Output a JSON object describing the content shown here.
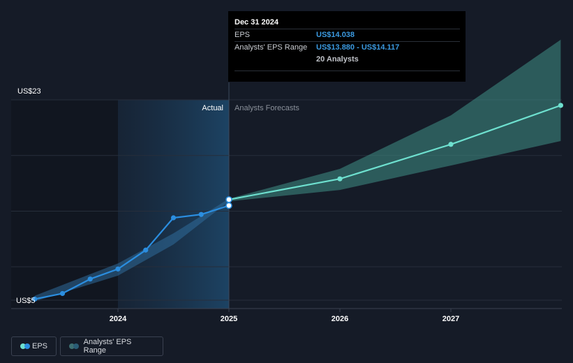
{
  "chart_data": {
    "type": "line",
    "y_axis": {
      "max_label": "US$23",
      "min_label": "US$5",
      "ylim": [
        5,
        23
      ]
    },
    "x_ticks": [
      "2024",
      "2025",
      "2026",
      "2027"
    ],
    "region_labels": {
      "actual": "Actual",
      "forecast": "Analysts Forecasts"
    },
    "series": [
      {
        "name": "EPS",
        "kind": "actual",
        "color": "#2b8ee0",
        "points": [
          {
            "x": 2023.25,
            "y": 5.1
          },
          {
            "x": 2023.5,
            "y": 5.6
          },
          {
            "x": 2023.75,
            "y": 6.9
          },
          {
            "x": 2024.0,
            "y": 7.8
          },
          {
            "x": 2024.25,
            "y": 9.5
          },
          {
            "x": 2024.5,
            "y": 12.4
          },
          {
            "x": 2024.75,
            "y": 12.7
          },
          {
            "x": 2025.0,
            "y": 13.5
          }
        ]
      },
      {
        "name": "EPS",
        "kind": "forecast",
        "color": "#6ee0cf",
        "points": [
          {
            "x": 2025.0,
            "y": 14.04
          },
          {
            "x": 2026.0,
            "y": 15.9
          },
          {
            "x": 2027.0,
            "y": 19.0
          },
          {
            "x": 2027.99,
            "y": 22.5
          }
        ]
      }
    ],
    "range_band": {
      "name": "Analysts' EPS Range",
      "points": [
        {
          "x": 2023.25,
          "lo": 4.9,
          "hi": 5.4
        },
        {
          "x": 2024.0,
          "lo": 7.2,
          "hi": 8.3
        },
        {
          "x": 2024.5,
          "lo": 10.0,
          "hi": 11.0
        },
        {
          "x": 2025.0,
          "lo": 13.88,
          "hi": 14.117
        },
        {
          "x": 2026.0,
          "lo": 14.9,
          "hi": 16.8
        },
        {
          "x": 2027.0,
          "lo": 17.1,
          "hi": 21.6
        },
        {
          "x": 2027.99,
          "lo": 19.3,
          "hi": 28.4
        }
      ]
    },
    "legend": [
      "EPS",
      "Analysts' EPS Range"
    ]
  },
  "tooltip": {
    "date": "Dec 31 2024",
    "eps_label": "EPS",
    "eps_value": "US$14.038",
    "range_label": "Analysts' EPS Range",
    "range_value": "US$13.880 - US$14.117",
    "analysts": "20 Analysts"
  },
  "legend": {
    "eps_label": "EPS",
    "range_label": "Analysts' EPS Range",
    "eps_colors": [
      "#6ee0cf",
      "#2b8ee0"
    ],
    "range_colors": [
      "#3d6f72",
      "#2a5c75"
    ]
  }
}
